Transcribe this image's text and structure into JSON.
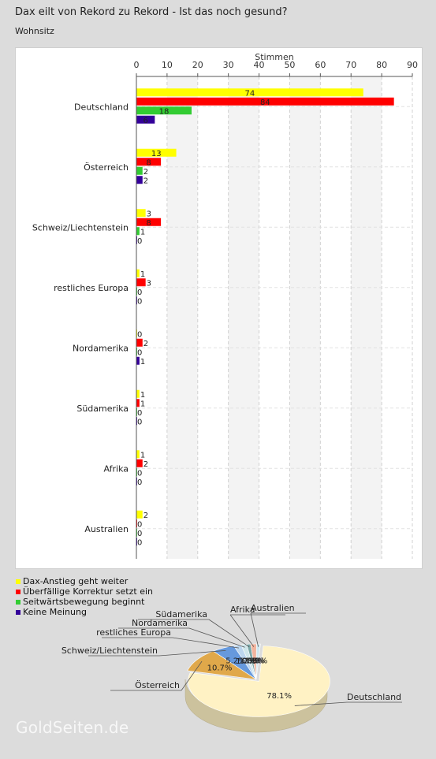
{
  "title": "Dax eilt von Rekord zu Rekord - Ist das noch gesund?",
  "subtitle": "Wohnsitz",
  "watermark": "GoldSeiten.de",
  "colors": {
    "series": [
      "#ffff00",
      "#ff0000",
      "#33cc33",
      "#330099"
    ],
    "pie": [
      "#fff2c4",
      "#e0a84a",
      "#6699dd",
      "#bcd6ee",
      "#cfe6ea",
      "#7aa7a7",
      "#f1b49e",
      "#cfe8f0",
      "#ff88bb"
    ]
  },
  "chart_data": [
    {
      "type": "bar",
      "orientation": "horizontal",
      "xlabel": "Stimmen",
      "xlim": [
        0,
        90
      ],
      "ticks": [
        0,
        10,
        20,
        30,
        40,
        50,
        60,
        70,
        80,
        90
      ],
      "grid": true,
      "categories": [
        "Deutschland",
        "Österreich",
        "Schweiz/Liechtenstein",
        "restliches Europa",
        "Nordamerika",
        "Südamerika",
        "Afrika",
        "Australien"
      ],
      "series": [
        {
          "name": "Dax-Anstieg geht weiter",
          "values": [
            74,
            13,
            3,
            1,
            0,
            1,
            1,
            2
          ]
        },
        {
          "name": "Überfällige Korrektur setzt ein",
          "values": [
            84,
            8,
            8,
            3,
            2,
            1,
            2,
            0
          ]
        },
        {
          "name": "Seitwärtsbewegung beginnt",
          "values": [
            18,
            2,
            1,
            0,
            0,
            0,
            0,
            0
          ]
        },
        {
          "name": "Keine Meinung",
          "values": [
            6,
            2,
            0,
            0,
            1,
            0,
            0,
            0
          ]
        }
      ],
      "legend_position": "bottom-left"
    },
    {
      "type": "pie",
      "labels": [
        "Deutschland",
        "Österreich",
        "Schweiz/Liechtenstein",
        "restliches Europa",
        "Nordamerika",
        "Südamerika",
        "Afrika",
        "Australien"
      ],
      "values": [
        78.1,
        10.7,
        5.2,
        1.7,
        1.3,
        0.9,
        1.3,
        0.9
      ],
      "value_labels": [
        "78.1%",
        "10.7%",
        "5.2%",
        "1.7%",
        "1.3%",
        "0.9%",
        "1.3%",
        "0.9%"
      ]
    }
  ]
}
